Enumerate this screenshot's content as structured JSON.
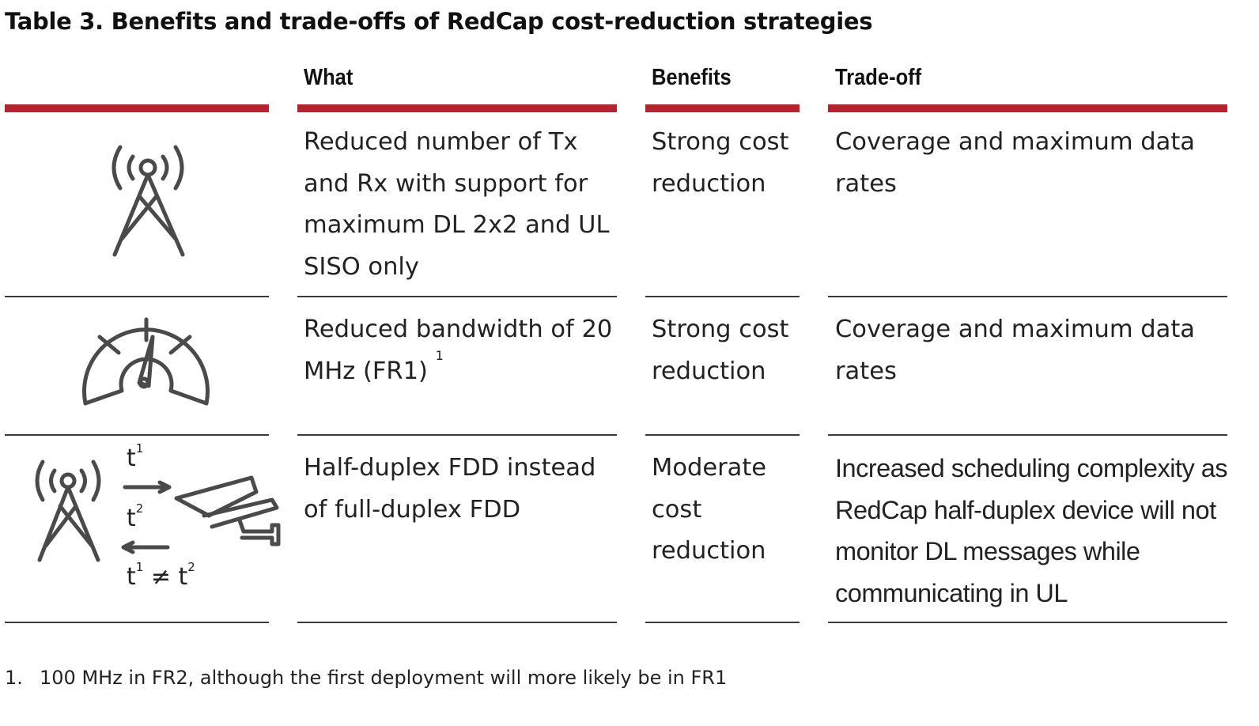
{
  "caption": "Table 3. Benefits and trade-offs of RedCap cost-reduction strategies",
  "columns": {
    "what": "What",
    "benefits": "Benefits",
    "tradeoff": "Trade-off"
  },
  "rows": [
    {
      "icon": "antenna-tower-icon",
      "what": "Reduced number of Tx and Rx with support for maximum DL 2x2 and UL SISO only",
      "what_sup": "",
      "benefits": "Strong cost reduction",
      "tradeoff": "Coverage and maximum data rates"
    },
    {
      "icon": "speedometer-gauge-icon",
      "what": "Reduced bandwidth of 20 MHz (FR1)",
      "what_sup": "1",
      "benefits": "Strong cost reduction",
      "tradeoff": "Coverage and maximum data rates"
    },
    {
      "icon": "tower-to-camera-half-duplex-icon",
      "icon_labels": {
        "t1_base": "t",
        "t1_sup": "1",
        "t2_base": "t",
        "t2_sup": "2",
        "neq_t1_base": "t",
        "neq_t1_sup": "1",
        "neq_op": " ≠ ",
        "neq_t2_base": "t",
        "neq_t2_sup": "2"
      },
      "what": "Half-duplex FDD instead of full-duplex FDD",
      "what_sup": "",
      "benefits": "Moderate cost reduction",
      "tradeoff": "Increased scheduling complexity as RedCap half-duplex device will not monitor DL messages while communicating in UL"
    }
  ],
  "footnote": {
    "number": "1.",
    "text": "100 MHz in FR2, although the first deployment will more likely be in FR1"
  },
  "colors": {
    "accent_rule": "#b5232f",
    "icon_stroke": "#4a4a4a",
    "text": "#222222"
  }
}
